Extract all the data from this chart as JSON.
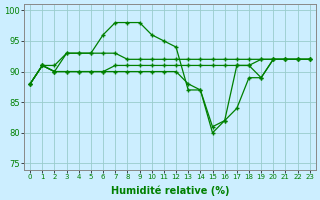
{
  "line_dotted_high": [
    88,
    91,
    90,
    93,
    93,
    93,
    96,
    98,
    98,
    98,
    96,
    95,
    94,
    87,
    87,
    81,
    82,
    91,
    91,
    89,
    92,
    92,
    92,
    92
  ],
  "line_upper_flat": [
    88,
    91,
    91,
    93,
    93,
    93,
    93,
    93,
    92,
    92,
    92,
    92,
    92,
    92,
    92,
    92,
    92,
    92,
    92,
    92,
    92,
    92,
    92,
    92
  ],
  "line_mid_flat": [
    88,
    91,
    90,
    90,
    90,
    90,
    90,
    91,
    91,
    91,
    91,
    91,
    91,
    91,
    91,
    91,
    91,
    91,
    91,
    92,
    92,
    92,
    92,
    92
  ],
  "line_wavy_dip": [
    88,
    91,
    90,
    90,
    90,
    90,
    90,
    90,
    90,
    90,
    90,
    90,
    90,
    88,
    87,
    80,
    82,
    84,
    89,
    89,
    92,
    92,
    92,
    92
  ],
  "xlabel": "Humidité relative (%)",
  "ylim": [
    74,
    101
  ],
  "xlim": [
    -0.5,
    23.5
  ],
  "yticks": [
    75,
    80,
    85,
    90,
    95,
    100
  ],
  "xticks": [
    0,
    1,
    2,
    3,
    4,
    5,
    6,
    7,
    8,
    9,
    10,
    11,
    12,
    13,
    14,
    15,
    16,
    17,
    18,
    19,
    20,
    21,
    22,
    23
  ],
  "line_color": "#008000",
  "bg_color": "#cceeff",
  "grid_color": "#99cccc"
}
